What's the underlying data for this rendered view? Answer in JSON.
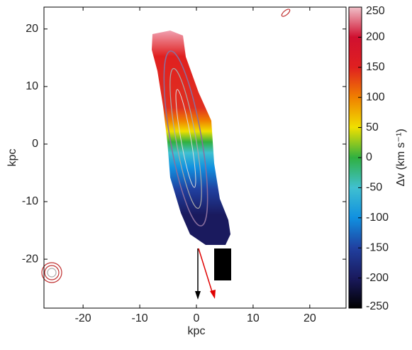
{
  "chart_data": {
    "type": "velocity-map",
    "x_label": "kpc",
    "y_label": "kpc",
    "xlim": [
      -26.9,
      26.4
    ],
    "ylim": [
      -28.5,
      23.8
    ],
    "xticks": [
      -20,
      -10,
      0,
      10,
      20
    ],
    "yticks": [
      -20,
      -10,
      0,
      10,
      20
    ],
    "colorbar": {
      "label": "Δv (km s⁻¹)",
      "lim": [
        -250,
        250
      ],
      "ticks": [
        -250,
        -200,
        -150,
        -100,
        -50,
        0,
        50,
        100,
        150,
        200,
        250
      ],
      "colors": [
        "#000000",
        "#1a1a5e",
        "#2040a0",
        "#1090e0",
        "#40c0d0",
        "#30b040",
        "#f0e000",
        "#f08000",
        "#e02020",
        "#d01030",
        "#f0c0c8"
      ]
    }
  }
}
